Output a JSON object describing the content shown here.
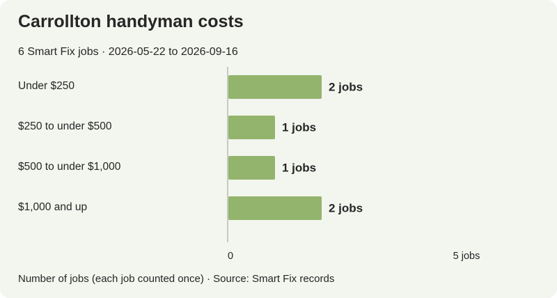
{
  "header": {
    "title": "Carrollton handyman costs",
    "subtitle": "6 Smart Fix jobs · 2026-05-22 to 2026-09-16"
  },
  "footer": {
    "note": "Number of jobs (each job counted once) · Source: Smart Fix records"
  },
  "colors": {
    "bar": "#93b46d",
    "axis": "#b8bcb2",
    "background": "#f3f5ef"
  },
  "chart_data": {
    "type": "bar",
    "orientation": "horizontal",
    "title": "Carrollton handyman costs",
    "subtitle": "6 Smart Fix jobs · 2026-05-22 to 2026-09-16",
    "categories": [
      "Under $250",
      "$250 to under $500",
      "$500 to under $1,000",
      "$1,000 and up"
    ],
    "values": [
      2,
      1,
      1,
      2
    ],
    "value_labels": [
      "2 jobs",
      "1 jobs",
      "1 jobs",
      "2 jobs"
    ],
    "xlim": [
      0,
      5
    ],
    "x_ticks": [
      0,
      5
    ],
    "x_tick_labels": [
      "0",
      "5 jobs"
    ],
    "xlabel": "Number of jobs (each job counted once) · Source: Smart Fix records",
    "grid": false,
    "legend": "none"
  }
}
